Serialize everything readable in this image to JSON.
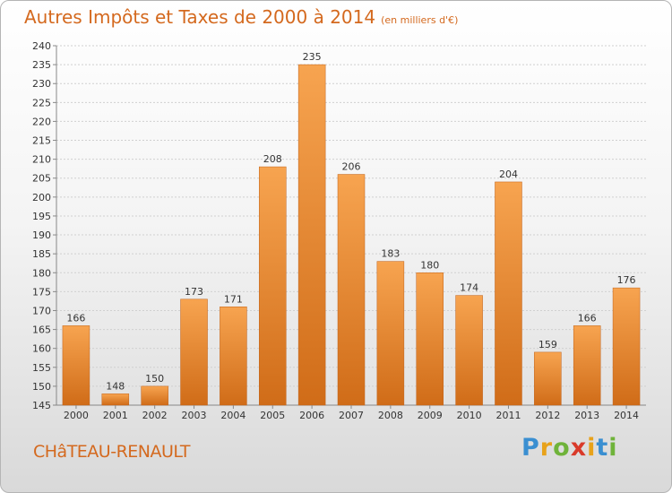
{
  "title": "Autres Impôts et Taxes de 2000 à 2014",
  "subtitle": "(en milliers d'€)",
  "commune": "CHâTEAU-RENAULT",
  "logo": {
    "text": "Proxiti",
    "colors": [
      "#3a8fd1",
      "#e8a21a",
      "#6fb33a",
      "#d93a2a",
      "#e8a21a",
      "#3a8fd1",
      "#6fb33a"
    ]
  },
  "chart_data": {
    "type": "bar",
    "categories": [
      "2000",
      "2001",
      "2002",
      "2003",
      "2004",
      "2005",
      "2006",
      "2007",
      "2008",
      "2009",
      "2010",
      "2011",
      "2012",
      "2013",
      "2014"
    ],
    "values": [
      166,
      148,
      150,
      173,
      171,
      208,
      235,
      206,
      183,
      180,
      174,
      204,
      159,
      166,
      176
    ],
    "title": "Autres Impôts et Taxes de 2000 à 2014",
    "subtitle": "(en milliers d'€)",
    "ylim": [
      145,
      240
    ],
    "ytick_step": 5,
    "grid": true,
    "bar_color": "#f0913a"
  }
}
